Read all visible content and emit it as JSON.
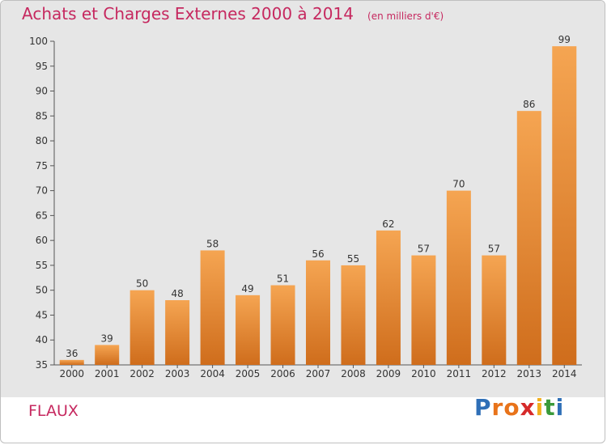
{
  "header": {
    "title": "Achats et Charges Externes 2000 à 2014",
    "subtitle": "(en milliers d'€)"
  },
  "footer": {
    "commune": "FLAUX",
    "logo_letters": [
      "P",
      "r",
      "o",
      "x",
      "i",
      "t",
      "i"
    ],
    "logo_colors": [
      "#2f6fb7",
      "#e8731a",
      "#e8731a",
      "#d62a2a",
      "#f2b01e",
      "#3a9a3a",
      "#2f6fb7"
    ]
  },
  "colors": {
    "bar_top": "#f5a552",
    "bar_bottom": "#cf6d1c",
    "background": "#e6e6e6",
    "title": "#c6285f"
  },
  "chart_data": {
    "type": "bar",
    "categories": [
      "2000",
      "2001",
      "2002",
      "2003",
      "2004",
      "2005",
      "2006",
      "2007",
      "2008",
      "2009",
      "2010",
      "2011",
      "2012",
      "2013",
      "2014"
    ],
    "values": [
      36,
      39,
      50,
      48,
      58,
      49,
      51,
      56,
      55,
      62,
      57,
      70,
      57,
      86,
      99
    ],
    "ylim": [
      35,
      100
    ],
    "yticks": [
      35,
      40,
      45,
      50,
      55,
      60,
      65,
      70,
      75,
      80,
      85,
      90,
      95,
      100
    ],
    "grid": false,
    "data_labels": true
  }
}
